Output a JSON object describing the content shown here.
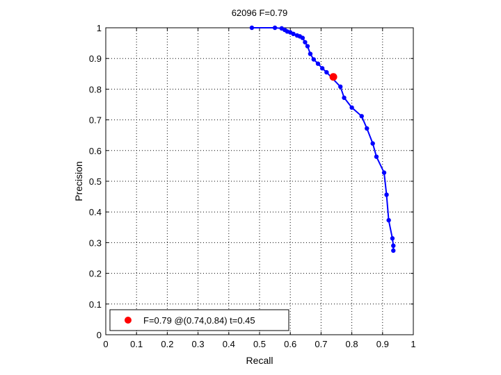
{
  "chart_data": {
    "type": "line",
    "title": "62096 F=0.79",
    "xlabel": "Recall",
    "ylabel": "Precision",
    "xlim": [
      0,
      1
    ],
    "ylim": [
      0,
      1
    ],
    "grid": true,
    "xticks": [
      "0",
      "0.1",
      "0.2",
      "0.3",
      "0.4",
      "0.5",
      "0.6",
      "0.7",
      "0.8",
      "0.9",
      "1"
    ],
    "yticks": [
      "0",
      "0.1",
      "0.2",
      "0.3",
      "0.4",
      "0.5",
      "0.6",
      "0.7",
      "0.8",
      "0.9",
      "1"
    ],
    "legend_position": "bottom-left",
    "series": [
      {
        "color": "#0000ff",
        "x": [
          0.475,
          0.55,
          0.572,
          0.582,
          0.59,
          0.6,
          0.61,
          0.622,
          0.631,
          0.64,
          0.648,
          0.656,
          0.665,
          0.676,
          0.69,
          0.704,
          0.718,
          0.763,
          0.775,
          0.8,
          0.832,
          0.849,
          0.868,
          0.88,
          0.905,
          0.913,
          0.92,
          0.932,
          0.935,
          0.935
        ],
        "y": [
          1.0,
          1.0,
          0.998,
          0.993,
          0.988,
          0.985,
          0.98,
          0.975,
          0.972,
          0.967,
          0.953,
          0.94,
          0.915,
          0.897,
          0.883,
          0.868,
          0.855,
          0.808,
          0.772,
          0.74,
          0.712,
          0.672,
          0.623,
          0.58,
          0.528,
          0.456,
          0.373,
          0.314,
          0.29,
          0.274
        ]
      }
    ],
    "highlight": {
      "x": 0.74,
      "y": 0.84,
      "color": "#ff0000"
    },
    "legend_text": "F=0.79 @(0.74,0.84) t=0.45"
  }
}
